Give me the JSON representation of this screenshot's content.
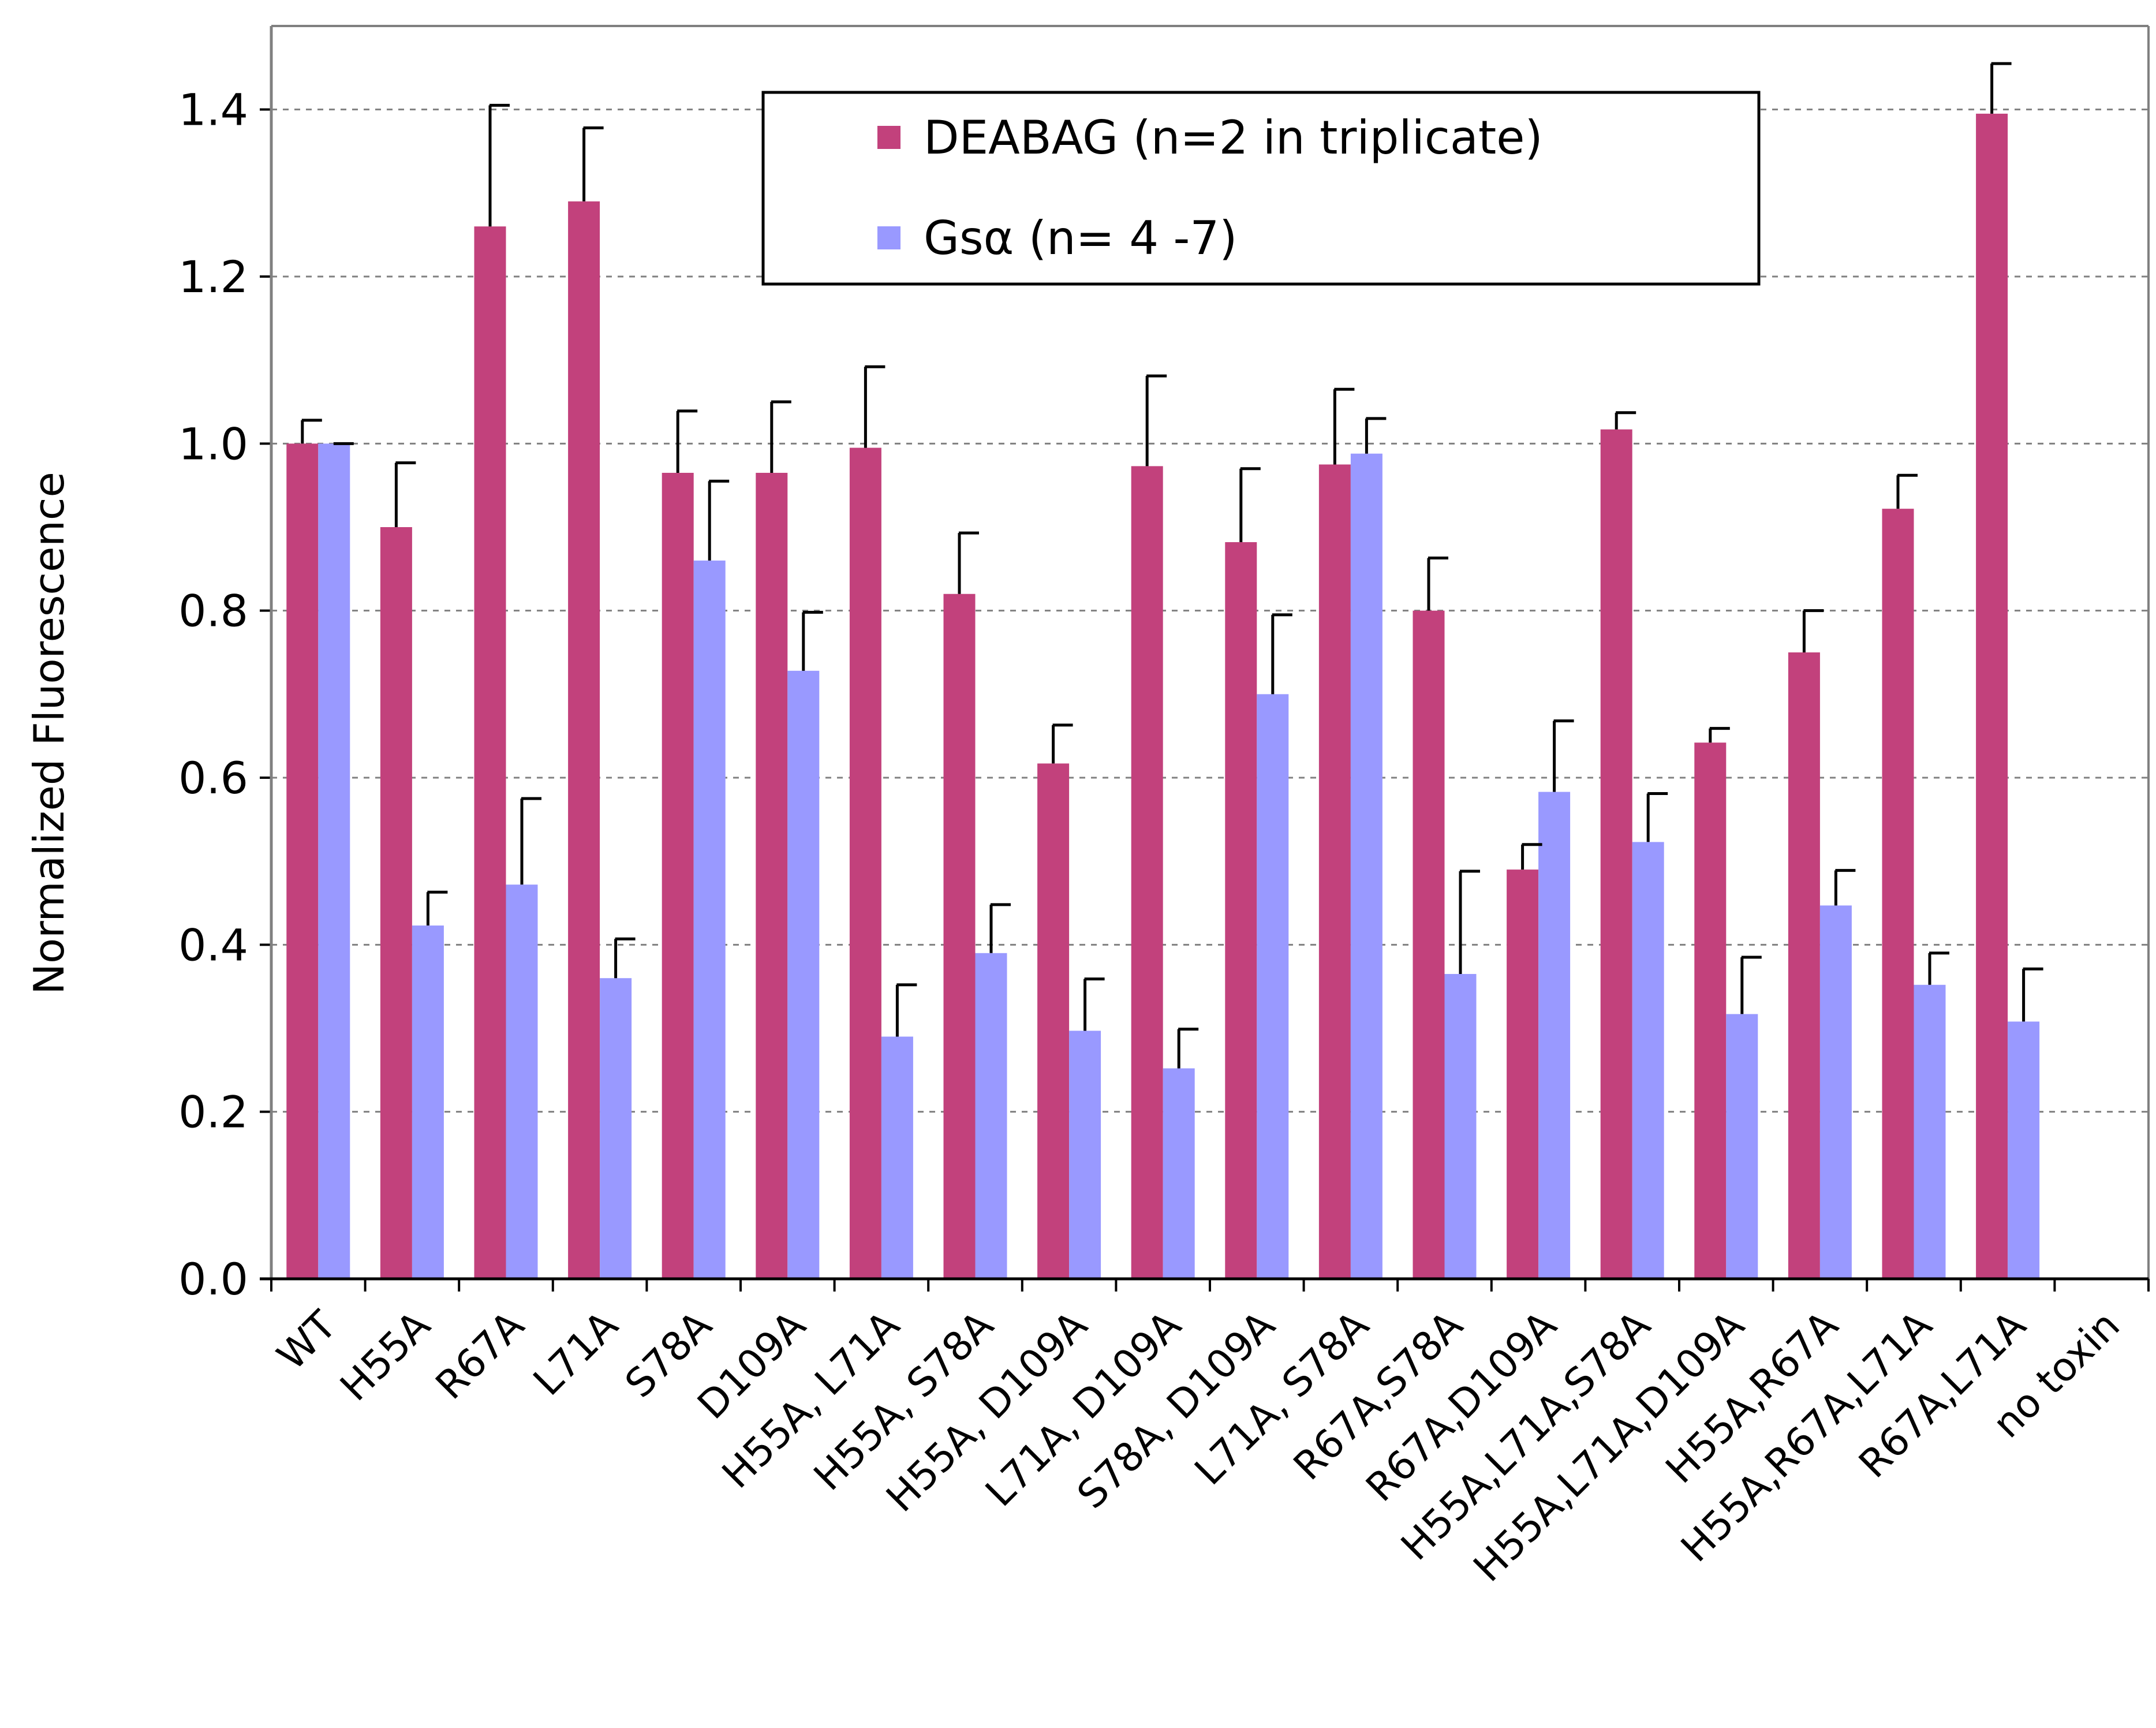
{
  "chart_data": {
    "type": "bar",
    "ylabel": "Normalized Fluorescence",
    "xlabel": "",
    "ylim": [
      0,
      1.5
    ],
    "yticks": [
      "0.0",
      "0.2",
      "0.4",
      "0.6",
      "0.8",
      "1.0",
      "1.2",
      "1.4"
    ],
    "grid": "horizontal dashed",
    "legend_position": "top-center",
    "categories": [
      "WT",
      "H55A",
      "R67A",
      "L71A",
      "S78A",
      "D109A",
      "H55A, L71A",
      "H55A, S78A",
      "H55A, D109A",
      "L71A, D109A",
      "S78A, D109A",
      "L71A, S78A",
      "R67A,S78A",
      "R67A,D109A",
      "H55A,L71A,S78A",
      "H55A,L71A,D109A",
      "H55A,R67A",
      "H55A,R67A,L71A",
      "R67A,L71A",
      "no toxin"
    ],
    "series": [
      {
        "name": "DEABAG (n=2 in triplicate)",
        "color": "#c2417c",
        "values": [
          1.0,
          0.9,
          1.26,
          1.29,
          0.965,
          0.965,
          0.995,
          0.82,
          0.617,
          0.973,
          0.882,
          0.975,
          0.8,
          0.49,
          1.017,
          0.642,
          0.75,
          0.922,
          1.395,
          0.0
        ],
        "errors": [
          0.028,
          0.077,
          0.145,
          0.088,
          0.074,
          0.085,
          0.097,
          0.073,
          0.046,
          0.108,
          0.088,
          0.09,
          0.063,
          0.03,
          0.02,
          0.017,
          0.05,
          0.04,
          0.06,
          0.0
        ]
      },
      {
        "name": "Gsα (n= 4 -7)",
        "color": "#9999ff",
        "values": [
          1.0,
          0.423,
          0.472,
          0.36,
          0.86,
          0.728,
          0.29,
          0.39,
          0.297,
          0.252,
          0.7,
          0.988,
          0.365,
          0.583,
          0.523,
          0.317,
          0.447,
          0.352,
          0.308,
          0.0
        ],
        "errors": [
          0.0,
          0.04,
          0.103,
          0.047,
          0.095,
          0.07,
          0.062,
          0.058,
          0.062,
          0.047,
          0.095,
          0.042,
          0.123,
          0.085,
          0.058,
          0.068,
          0.042,
          0.038,
          0.063,
          0.0
        ]
      }
    ]
  }
}
